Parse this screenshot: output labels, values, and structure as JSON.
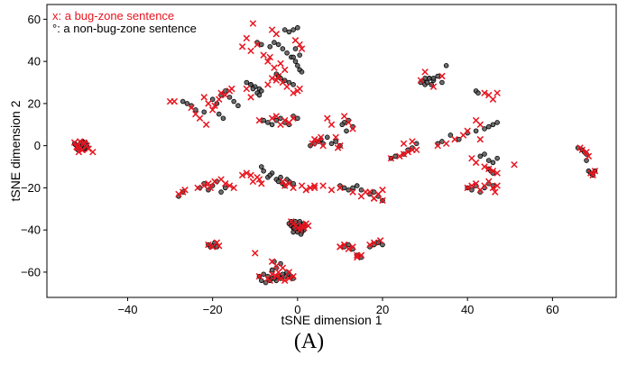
{
  "caption": "(A)",
  "chart_data": {
    "type": "scatter",
    "xlabel": "tSNE dimension 1",
    "ylabel": "tSNE dimension 2",
    "xlim": [
      -59,
      75
    ],
    "ylim": [
      -72,
      67
    ],
    "xticks": [
      -40,
      -20,
      0,
      20,
      40,
      60
    ],
    "yticks": [
      -60,
      -40,
      -20,
      0,
      20,
      40,
      60
    ],
    "grid": false,
    "legend_position": "top-left",
    "colors": {
      "bug": "#e8141e",
      "nonbug": "#555555",
      "nonbug_edge": "#000000"
    },
    "series": [
      {
        "name": "x: a bug-zone sentence",
        "marker": "x",
        "x": [
          -52.5,
          -51.8,
          -51.2,
          -50.6,
          -50.1,
          -49.6,
          -49.2,
          -51.5,
          -50.3,
          -48.2,
          -52.0,
          -50.8,
          -30,
          -29,
          -25,
          -24,
          -22,
          -21,
          -20,
          -19.5,
          -18.5,
          -18,
          -17,
          -16,
          -15.5,
          -23,
          -21.5,
          -28,
          -27,
          -26.5,
          -23.5,
          -22,
          -21,
          -20.5,
          -19.5,
          -18,
          -17,
          -16,
          -15,
          -13,
          -12,
          -11,
          -9.5,
          -21,
          -20,
          -19,
          -18.5,
          -10,
          -13,
          -12,
          -11,
          -9.5,
          -8,
          -7,
          -6.5,
          -5.5,
          -4.5,
          -3.5,
          -2.5,
          -1,
          0,
          0.5,
          -3,
          -4,
          -7,
          -5,
          -6,
          -12,
          -11,
          -9,
          -6,
          -5,
          -4,
          -3,
          -2,
          -1,
          -10.5,
          -9,
          -8.5,
          -3.5,
          -3,
          -2,
          -1,
          1,
          2,
          3,
          4,
          -5,
          -2,
          -1,
          -0.5,
          0,
          0.5,
          1,
          1.5,
          2,
          2.5,
          -1.5,
          -9,
          -7,
          -6.5,
          -6,
          -5,
          -4,
          -3,
          -2,
          -1,
          -4.5,
          -3.5,
          -6,
          -10.5,
          -6,
          -5,
          -0.5,
          0.5,
          1,
          3.5,
          4,
          5,
          5.5,
          6,
          7,
          8,
          9,
          10,
          11,
          12,
          13,
          9.5,
          4,
          6,
          8,
          10,
          13,
          15,
          16,
          18,
          19,
          20,
          10,
          11,
          12,
          14,
          15,
          17,
          18,
          19.5,
          22,
          24,
          25,
          27,
          28,
          30,
          32,
          34,
          29,
          25,
          26,
          27,
          33,
          35,
          37,
          39,
          40,
          42,
          43,
          40,
          41,
          42,
          43,
          44,
          45,
          46,
          46.5,
          47,
          43,
          44,
          45,
          46,
          47,
          51,
          41,
          42,
          44,
          45,
          46,
          47,
          66.5,
          67,
          68,
          68.5,
          69,
          69.5,
          70,
          10,
          11,
          13,
          14,
          17,
          18,
          19,
          20
        ],
        "y": [
          1.5,
          -1,
          2,
          -2,
          1,
          0,
          -1.5,
          -3,
          1.5,
          -3,
          -0.5,
          -2,
          21,
          21,
          18,
          15,
          23,
          20,
          17,
          19,
          22,
          25,
          24,
          26,
          27,
          13,
          10,
          -23,
          -22,
          -21,
          -20,
          -19,
          -18,
          -20,
          -17,
          -16,
          -18,
          -19,
          -20,
          -14,
          -13,
          -14,
          -15,
          -47,
          -48,
          -46,
          -47.5,
          -51,
          47,
          51,
          45,
          48,
          43,
          40,
          42,
          37,
          33,
          30,
          28,
          25,
          26,
          27,
          36,
          39,
          29,
          31,
          32,
          27,
          23,
          12,
          13,
          14,
          10,
          12,
          11,
          13,
          -17,
          -16,
          -18,
          -17,
          -19,
          -18,
          -20,
          -19,
          -21,
          -20,
          -19,
          -57,
          -60,
          -37,
          -38,
          -39,
          -40,
          -38,
          -39,
          -37,
          -38,
          -36,
          -62,
          -63,
          -64,
          -61,
          -62,
          -63,
          -64,
          -63,
          -62,
          -60,
          -58,
          -55,
          58,
          55,
          53,
          50,
          48,
          46,
          1,
          3,
          2,
          4,
          0,
          13,
          10,
          4,
          0,
          14,
          11,
          8,
          -1,
          -20,
          -19,
          -21,
          -20,
          -22,
          -24,
          -22,
          -25,
          -23,
          -21,
          -48,
          -47,
          -49,
          -53,
          -52,
          -47,
          -46,
          -45,
          -6,
          -5,
          1,
          2,
          -2,
          35,
          28,
          33,
          31,
          -4,
          -3,
          -2,
          0,
          1,
          3,
          5,
          7,
          12,
          10,
          -20,
          -19,
          -18,
          -21,
          -19,
          -17,
          -20,
          -22,
          -19,
          3,
          25,
          24,
          22,
          25,
          -9,
          -6,
          -8,
          -10,
          -11,
          -12,
          -13,
          -1,
          -2,
          -3,
          -5,
          -13,
          -14,
          -12,
          -48,
          -47,
          -48,
          -52,
          -22,
          -25,
          -23,
          -26
        ]
      },
      {
        "name": "°: a non-bug-zone sentence",
        "marker": "o",
        "x": [
          -52.5,
          -52,
          -51.5,
          -51,
          -50.8,
          -50.5,
          -50.2,
          -49.8,
          -49.5,
          -51.7,
          -50.6,
          -50.1,
          -52.3,
          -49.9,
          -51.1,
          -50.4,
          -27,
          -26,
          -25,
          -24,
          -22,
          -20,
          -19,
          -18,
          -17,
          -16,
          -15,
          -14,
          -18.5,
          -17.5,
          -28,
          -27,
          -23,
          -22,
          -21,
          -20,
          -19,
          -18,
          -17,
          -8.5,
          -8,
          -7,
          -6,
          -5,
          -4.5,
          -3.5,
          -3,
          -2,
          -1,
          -2.5,
          -4,
          -6.5,
          -21,
          -20.5,
          -20,
          -19.5,
          -19,
          -11,
          -10,
          -9,
          -8,
          -7,
          -6,
          -5,
          -4,
          -3,
          -2,
          -1,
          0,
          -9.5,
          -8.5,
          -6.5,
          -5.5,
          -4.5,
          -3.5,
          -2.5,
          -1.5,
          -0.5,
          0.5,
          -12,
          -11,
          -10.5,
          -9.5,
          -9,
          -8.5,
          -5,
          -4.5,
          -4,
          -3,
          -2,
          -1,
          -8,
          -7,
          -6,
          -5,
          -4,
          -3,
          -2,
          -1,
          -9,
          -8.5,
          -7.5,
          -6.5,
          -5.5,
          -4.5,
          -3.5,
          -2.5,
          -1.5,
          -6,
          -5,
          -4,
          -5.5,
          -2,
          -1.5,
          -1,
          -0.5,
          0,
          0.5,
          1,
          1.5,
          2,
          -1.5,
          -0.5,
          0.5,
          1.5,
          -1,
          0,
          1,
          -0.8,
          0.2,
          1.2,
          0.8,
          -1,
          -0.5,
          0,
          0.5,
          1,
          3,
          4,
          5,
          5.5,
          6,
          7,
          8,
          9,
          10,
          11,
          12,
          13,
          10.5,
          11.5,
          10,
          11,
          12,
          13,
          14,
          15,
          17,
          18,
          19,
          20,
          11,
          12,
          13,
          14,
          15,
          17,
          18,
          19,
          20,
          22,
          23,
          25,
          26,
          27,
          28,
          29,
          30,
          31,
          32,
          33,
          34,
          29.5,
          30.5,
          31.5,
          30,
          31,
          32,
          33,
          34,
          35,
          36,
          38,
          40,
          42,
          44,
          45,
          46,
          47,
          40,
          41,
          42,
          43,
          44,
          45,
          46,
          43,
          44,
          45,
          46,
          47,
          42,
          42.5,
          45,
          45.5,
          46,
          66,
          67,
          67.5,
          68,
          68.5,
          69,
          69.5,
          70,
          68,
          -3,
          -2,
          -1,
          0
        ],
        "y": [
          1,
          0,
          -1,
          1.5,
          -0.5,
          0.5,
          -1.5,
          1,
          -0.5,
          -2,
          2,
          -1,
          0.5,
          0,
          -1,
          1.5,
          21,
          20,
          19,
          17,
          16,
          22,
          20,
          24,
          26,
          23,
          21,
          19,
          15,
          13,
          -24,
          -22,
          -20,
          -18,
          -21,
          -19,
          -17,
          -22,
          -20,
          -10,
          -12,
          -15,
          -13,
          -16,
          -17,
          -18,
          -19,
          -17,
          -18,
          -16,
          -15,
          -14,
          -47,
          -48,
          -47.5,
          -46,
          -48,
          29,
          28,
          27,
          12,
          11,
          10,
          12,
          13,
          11,
          10,
          14,
          13,
          49,
          48,
          47,
          49,
          48,
          46,
          44,
          42,
          46,
          43,
          30,
          29,
          27,
          25,
          24,
          26,
          34,
          33,
          32,
          31,
          30,
          29,
          -61,
          -62,
          -63,
          -64,
          -63,
          -62,
          -61,
          -63,
          -62,
          -64,
          -65,
          -64,
          -63,
          -62,
          -61,
          -60,
          -62,
          -59,
          -58,
          -56,
          -55,
          -37,
          -38,
          -39,
          -40,
          -38,
          -37,
          -39,
          -40,
          -38,
          -36,
          -36,
          -36,
          -37,
          -41,
          -41,
          -41,
          -39,
          -39,
          -39,
          -42,
          42,
          40,
          38,
          36,
          35,
          0,
          1,
          2,
          3,
          1,
          4,
          1,
          2,
          0,
          11,
          12,
          9,
          10,
          7,
          -19,
          -20,
          -21,
          -20,
          -19,
          -21,
          -23,
          -22,
          -24,
          -26,
          -48,
          -47,
          -49,
          -52,
          -53,
          -48,
          -47,
          -46,
          -47,
          -6,
          -5,
          -4,
          -2,
          -1,
          1,
          30,
          29,
          32,
          31,
          33,
          30,
          31,
          30,
          29,
          32,
          32,
          32,
          1,
          2,
          38,
          5,
          3,
          6,
          7,
          8,
          9,
          10,
          11,
          -20,
          -21,
          -19,
          -22,
          -20,
          -18,
          -19,
          -5,
          -4,
          -7,
          -8,
          -6,
          26,
          25,
          -11,
          -12,
          -13,
          -1,
          -2,
          -3,
          -4,
          -12,
          -13,
          -14,
          -12,
          -7,
          55,
          54,
          55,
          56
        ]
      }
    ]
  }
}
